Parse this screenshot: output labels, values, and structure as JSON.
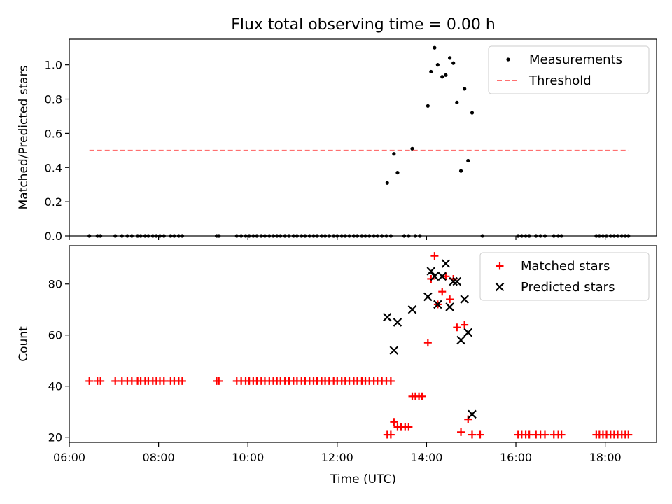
{
  "chart_data": {
    "type": "scatter",
    "title": "Flux total observing time = 0.00 h",
    "xlabel": "Time (UTC)",
    "xlim": [
      6.0,
      19.15
    ],
    "xticks": [
      6,
      8,
      10,
      12,
      14,
      16,
      18
    ],
    "xtick_labels": [
      "06:00",
      "08:00",
      "10:00",
      "12:00",
      "14:00",
      "16:00",
      "18:00"
    ],
    "panels": [
      {
        "ylabel": "Matched/Predicted stars",
        "ylim": [
          0,
          1.15
        ],
        "yticks": [
          0.0,
          0.2,
          0.4,
          0.6,
          0.8,
          1.0
        ],
        "ytick_labels": [
          "0.0",
          "0.2",
          "0.4",
          "0.6",
          "0.8",
          "1.0"
        ],
        "legend_position": "top-right",
        "series": [
          {
            "name": "Measurements",
            "marker": "dot",
            "color": "#000000",
            "x": [
              6.45,
              6.63,
              6.7,
              7.03,
              7.18,
              7.3,
              7.4,
              7.53,
              7.6,
              7.7,
              7.77,
              7.87,
              7.95,
              8.03,
              8.12,
              8.27,
              8.35,
              8.45,
              8.53,
              9.3,
              9.35,
              9.75,
              9.85,
              9.95,
              10.03,
              10.12,
              10.2,
              10.3,
              10.38,
              10.48,
              10.57,
              10.65,
              10.73,
              10.83,
              10.92,
              11.02,
              11.1,
              11.2,
              11.28,
              11.38,
              11.47,
              11.55,
              11.65,
              11.73,
              11.82,
              11.92,
              12.0,
              12.1,
              12.18,
              12.27,
              12.37,
              12.45,
              12.55,
              12.63,
              12.72,
              12.82,
              12.9,
              13.0,
              13.1,
              13.2,
              13.5,
              13.6,
              13.75,
              13.85,
              15.25,
              16.05,
              16.13,
              16.22,
              16.3,
              16.45,
              16.55,
              16.65,
              16.85,
              16.95,
              17.02,
              17.8,
              17.87,
              17.95,
              18.03,
              18.12,
              18.2,
              18.28,
              18.37,
              18.45,
              18.52
            ],
            "y": [
              0,
              0,
              0,
              0,
              0,
              0,
              0,
              0,
              0,
              0,
              0,
              0,
              0,
              0,
              0,
              0,
              0,
              0,
              0,
              0,
              0,
              0,
              0,
              0,
              0,
              0,
              0,
              0,
              0,
              0,
              0,
              0,
              0,
              0,
              0,
              0,
              0,
              0,
              0,
              0,
              0,
              0,
              0,
              0,
              0,
              0,
              0,
              0,
              0,
              0,
              0,
              0,
              0,
              0,
              0,
              0,
              0,
              0,
              0,
              0,
              0,
              0,
              0,
              0,
              0,
              0,
              0,
              0,
              0,
              0,
              0,
              0,
              0,
              0,
              0,
              0,
              0,
              0,
              0,
              0,
              0,
              0,
              0,
              0,
              0
            ]
          },
          {
            "name": "Measurements",
            "marker": "dot",
            "color": "#000000",
            "x": [
              13.12,
              13.27,
              13.35,
              13.68,
              14.03,
              14.1,
              14.18,
              14.25,
              14.35,
              14.43,
              14.52,
              14.6,
              14.68,
              14.77,
              14.85,
              14.93,
              15.02
            ],
            "y": [
              0.31,
              0.48,
              0.37,
              0.51,
              0.76,
              0.96,
              1.1,
              1.0,
              0.93,
              0.94,
              1.04,
              1.01,
              0.78,
              0.38,
              0.86,
              0.44,
              0.72
            ]
          },
          {
            "name": "Threshold",
            "marker": "dashed-line",
            "color": "#ff7070",
            "x": [
              6.45,
              18.52
            ],
            "y": [
              0.5,
              0.5
            ]
          }
        ]
      },
      {
        "ylabel": "Count",
        "ylim": [
          18,
          95
        ],
        "yticks": [
          20,
          40,
          60,
          80
        ],
        "ytick_labels": [
          "20",
          "40",
          "60",
          "80"
        ],
        "legend_position": "top-right",
        "series": [
          {
            "name": "Matched stars",
            "marker": "plus",
            "color": "#ff0000",
            "x": [
              6.45,
              6.63,
              6.7,
              7.03,
              7.18,
              7.3,
              7.4,
              7.53,
              7.6,
              7.7,
              7.77,
              7.87,
              7.95,
              8.03,
              8.12,
              8.27,
              8.35,
              8.45,
              8.53,
              9.3,
              9.35,
              9.75,
              9.85,
              9.95,
              10.03,
              10.12,
              10.2,
              10.3,
              10.38,
              10.48,
              10.57,
              10.65,
              10.73,
              10.83,
              10.92,
              11.02,
              11.1,
              11.2,
              11.28,
              11.38,
              11.47,
              11.55,
              11.65,
              11.73,
              11.82,
              11.92,
              12.0,
              12.1,
              12.18,
              12.27,
              12.37,
              12.45,
              12.55,
              12.63,
              12.72,
              12.82,
              12.9,
              13.0,
              13.1,
              13.2,
              13.12,
              13.2,
              13.27,
              13.35,
              13.43,
              13.52,
              13.6,
              13.68,
              13.75,
              13.83,
              13.9,
              14.03,
              14.1,
              14.18,
              14.25,
              14.35,
              14.43,
              14.52,
              14.6,
              14.68,
              14.77,
              14.85,
              14.93,
              15.02,
              15.2,
              16.05,
              16.13,
              16.22,
              16.3,
              16.45,
              16.55,
              16.65,
              16.85,
              16.95,
              17.02,
              17.8,
              17.87,
              17.95,
              18.03,
              18.12,
              18.2,
              18.28,
              18.37,
              18.45,
              18.52
            ],
            "y": [
              42,
              42,
              42,
              42,
              42,
              42,
              42,
              42,
              42,
              42,
              42,
              42,
              42,
              42,
              42,
              42,
              42,
              42,
              42,
              42,
              42,
              42,
              42,
              42,
              42,
              42,
              42,
              42,
              42,
              42,
              42,
              42,
              42,
              42,
              42,
              42,
              42,
              42,
              42,
              42,
              42,
              42,
              42,
              42,
              42,
              42,
              42,
              42,
              42,
              42,
              42,
              42,
              42,
              42,
              42,
              42,
              42,
              42,
              42,
              42,
              21,
              21,
              26,
              24,
              24,
              24,
              24,
              36,
              36,
              36,
              36,
              57,
              82,
              91,
              72,
              77,
              83,
              74,
              82,
              63,
              22,
              64,
              27,
              21,
              21,
              21,
              21,
              21,
              21,
              21,
              21,
              21,
              21,
              21,
              21,
              21,
              21,
              21,
              21,
              21,
              21,
              21,
              21,
              21,
              21
            ]
          },
          {
            "name": "Predicted stars",
            "marker": "x",
            "color": "#000000",
            "x": [
              13.12,
              13.27,
              13.35,
              13.68,
              14.03,
              14.1,
              14.18,
              14.25,
              14.35,
              14.43,
              14.52,
              14.6,
              14.68,
              14.77,
              14.85,
              14.93,
              15.02
            ],
            "y": [
              67,
              54,
              65,
              70,
              75,
              85,
              83,
              72,
              83,
              88,
              71,
              81,
              81,
              58,
              74,
              61,
              29
            ]
          }
        ]
      }
    ]
  }
}
